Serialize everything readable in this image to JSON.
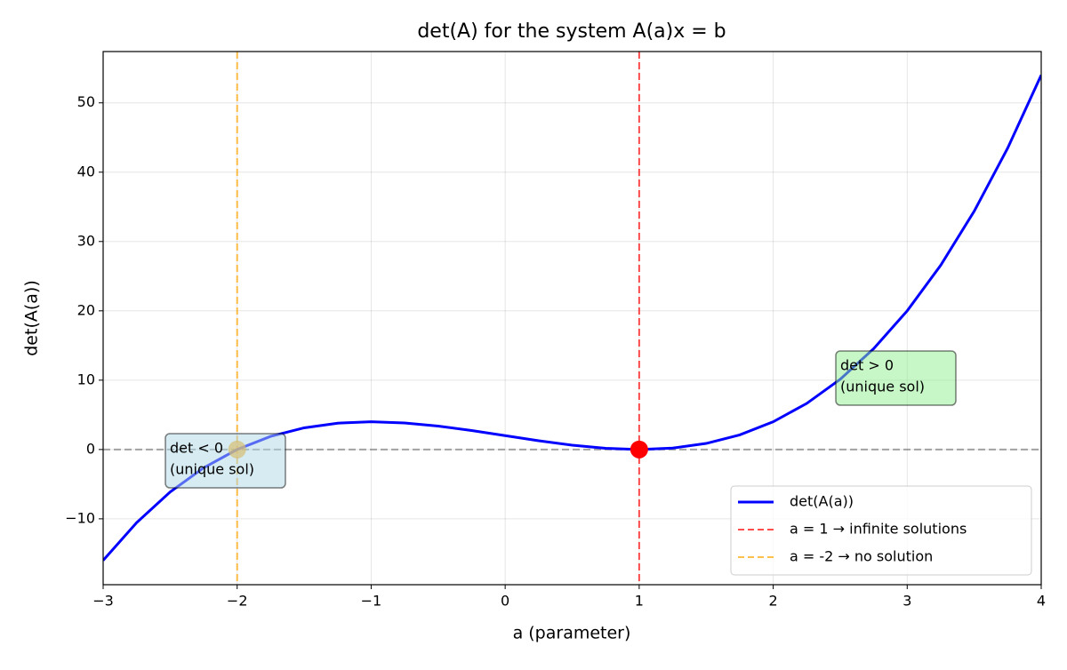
{
  "chart_data": {
    "type": "line",
    "title": "det(A) for the system A(a)x = b",
    "xlabel": "a (parameter)",
    "ylabel": "det(A(a))",
    "x": [
      -3,
      -2.75,
      -2.5,
      -2.25,
      -2,
      -1.75,
      -1.5,
      -1.25,
      -1,
      -0.75,
      -0.5,
      -0.25,
      0,
      0.25,
      0.5,
      0.75,
      1,
      1.25,
      1.5,
      1.75,
      2,
      2.25,
      2.5,
      2.75,
      3,
      3.25,
      3.5,
      3.75,
      4
    ],
    "series": [
      {
        "name": "det(A(a))",
        "color": "#0000ff",
        "values": [
          -16,
          -10.547,
          -6.125,
          -2.641,
          0,
          1.891,
          3.125,
          3.797,
          4,
          3.828,
          3.375,
          2.734,
          2,
          1.266,
          0.625,
          0.172,
          0,
          0.203,
          0.875,
          2.109,
          4,
          6.641,
          10.125,
          14.547,
          20,
          26.578,
          34.375,
          43.484,
          54
        ]
      }
    ],
    "vlines": [
      {
        "x": 1,
        "color": "#ff0000",
        "label": "a = 1 → infinite solutions"
      },
      {
        "x": -2,
        "color": "#ffa500",
        "label": "a = -2 → no solution"
      }
    ],
    "hline": 0,
    "points": [
      {
        "x": 1,
        "y": 0,
        "color": "#ff0000"
      },
      {
        "x": -2,
        "y": 0,
        "color": "#ffa500"
      }
    ],
    "annotations": [
      {
        "lines": [
          "det < 0",
          "(unique sol)"
        ],
        "color": "#add8e6"
      },
      {
        "lines": [
          "det > 0",
          "(unique sol)"
        ],
        "color": "#90ee90"
      }
    ],
    "xlim": [
      -3,
      4
    ],
    "xticks": [
      {
        "value": -3,
        "label": "−3"
      },
      {
        "value": -2,
        "label": "−2"
      },
      {
        "value": -1,
        "label": "−1"
      },
      0,
      1,
      2,
      3,
      4
    ],
    "ylim": [
      -19.5,
      57.4
    ],
    "yticks": [
      {
        "value": -10,
        "label": "−10"
      },
      0,
      10,
      20,
      30,
      40,
      50
    ],
    "grid": true,
    "legend": "lower right"
  }
}
